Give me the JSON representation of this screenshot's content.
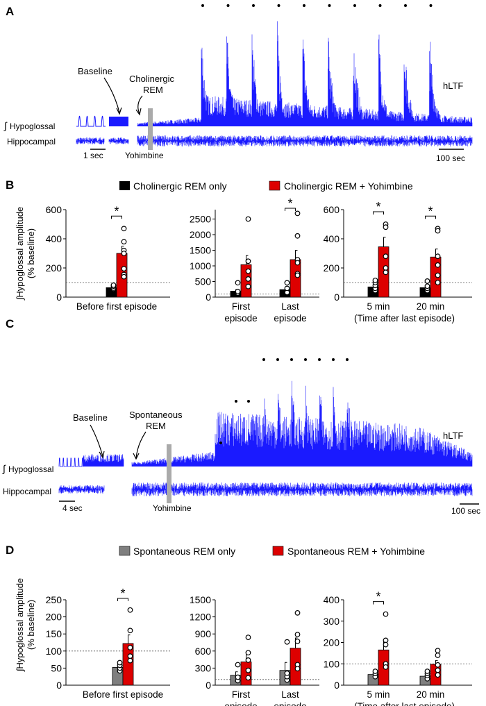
{
  "colors": {
    "trace": "#1a1aff",
    "black_bar": "#000000",
    "grey_bar": "#7f7f7f",
    "red_bar": "#dd0000",
    "drug_marker": "#aaaaaa"
  },
  "panelA": {
    "label": "A",
    "baseline": "Baseline",
    "rem_line1": "Cholinergic",
    "rem_line2": "REM",
    "hltf": "hLTF",
    "hypoglossal": "Hypoglossal",
    "integral": "∫",
    "hippocampal": "Hippocampal",
    "scale_short": "1 sec",
    "drug": "Yohimbine",
    "scale_long": "100 sec",
    "episodes": 10
  },
  "panelB": {
    "label": "B",
    "legend": [
      {
        "name": "Cholinergic REM only",
        "color": "#000000"
      },
      {
        "name": "Cholinergic REM + Yohimbine",
        "color": "#dd0000"
      }
    ],
    "ylabel_line1": "Hypoglossal amplitude",
    "ylabel_line2": "(% baseline)",
    "integral": "∫"
  },
  "panelC": {
    "label": "C",
    "baseline": "Baseline",
    "rem_line1": "Spontaneous",
    "rem_line2": "REM",
    "hltf": "hLTF",
    "hypoglossal": "Hypoglossal",
    "integral": "∫",
    "hippocampal": "Hippocampal",
    "scale_short": "4 sec",
    "drug": "Yohimbine",
    "scale_long": "100 sec",
    "episodes": 10
  },
  "panelD": {
    "label": "D",
    "legend": [
      {
        "name": "Spontaneous REM only",
        "color": "#7f7f7f"
      },
      {
        "name": "Spontaneous REM + Yohimbine",
        "color": "#dd0000"
      }
    ],
    "ylabel_line1": "Hypoglossal amplitude",
    "ylabel_line2": "(% baseline)",
    "integral": "∫"
  },
  "chart_data": [
    {
      "id": "B1",
      "type": "bar",
      "ylim": [
        0,
        600
      ],
      "yticks": [
        "0",
        "200",
        "400",
        "600"
      ],
      "reference_line": 100,
      "xlabel": [
        "Before first episode"
      ],
      "groups": [
        {
          "label": [
            "Before first episode"
          ],
          "control": {
            "mean": 65,
            "sem": 8,
            "points": [
              55,
              62,
              75,
              82
            ]
          },
          "drug": {
            "mean": 300,
            "sem": 50,
            "points": [
              470,
              380,
              320,
              300,
              195,
              155,
              140
            ]
          },
          "significant": true
        }
      ]
    },
    {
      "id": "B2",
      "type": "bar",
      "ylim": [
        0,
        2800
      ],
      "yticks": [
        "0",
        "500",
        "1000",
        "1500",
        "2000",
        "2500"
      ],
      "reference_line": 100,
      "groups": [
        {
          "label": [
            "First",
            "episode"
          ],
          "control": {
            "mean": 190,
            "sem": 50,
            "points": [
              130,
              180,
              460
            ]
          },
          "drug": {
            "mean": 1040,
            "sem": 290,
            "points": [
              2500,
              1150,
              830,
              580,
              340
            ]
          },
          "significant": false
        },
        {
          "label": [
            "Last",
            "episode"
          ],
          "control": {
            "mean": 240,
            "sem": 60,
            "points": [
              150,
              280,
              460
            ]
          },
          "drug": {
            "mean": 1200,
            "sem": 300,
            "points": [
              2680,
              1960,
              1200,
              1100,
              750,
              700
            ]
          },
          "significant": true
        }
      ]
    },
    {
      "id": "B3",
      "type": "bar",
      "ylim": [
        0,
        600
      ],
      "yticks": [
        "0",
        "200",
        "400",
        "600"
      ],
      "reference_line": 100,
      "xlabel": [
        "(Time after last episode)"
      ],
      "groups": [
        {
          "label": [
            "5 min"
          ],
          "control": {
            "mean": 70,
            "sem": 10,
            "points": [
              45,
              60,
              80,
              100,
              115
            ]
          },
          "drug": {
            "mean": 345,
            "sem": 65,
            "points": [
              500,
              480,
              280,
              200,
              170
            ]
          },
          "significant": true
        },
        {
          "label": [
            "20 min"
          ],
          "control": {
            "mean": 65,
            "sem": 12,
            "points": [
              45,
              60,
              75,
              110
            ]
          },
          "drug": {
            "mean": 275,
            "sem": 55,
            "points": [
              470,
              455,
              280,
              220,
              150,
              100
            ]
          },
          "significant": true
        }
      ]
    },
    {
      "id": "D1",
      "type": "bar",
      "ylim": [
        0,
        250
      ],
      "yticks": [
        "0",
        "50",
        "100",
        "150",
        "200",
        "250"
      ],
      "reference_line": 100,
      "groups": [
        {
          "label": [
            "Before first episode"
          ],
          "control": {
            "mean": 52,
            "sem": 6,
            "points": [
              42,
              50,
              58,
              66
            ]
          },
          "drug": {
            "mean": 122,
            "sem": 25,
            "points": [
              220,
              160,
              110,
              85,
              72
            ]
          },
          "significant": true
        }
      ]
    },
    {
      "id": "D2",
      "type": "bar",
      "ylim": [
        0,
        1500
      ],
      "yticks": [
        "0",
        "300",
        "600",
        "900",
        "1200",
        "1500"
      ],
      "reference_line": 100,
      "groups": [
        {
          "label": [
            "First",
            "episode"
          ],
          "control": {
            "mean": 175,
            "sem": 60,
            "points": [
              80,
              140,
              360
            ]
          },
          "drug": {
            "mean": 410,
            "sem": 120,
            "points": [
              840,
              570,
              440,
              260,
              130
            ]
          },
          "significant": false
        },
        {
          "label": [
            "Last",
            "episode"
          ],
          "control": {
            "mean": 260,
            "sem": 140,
            "points": [
              90,
              150,
              210,
              760
            ]
          },
          "drug": {
            "mean": 650,
            "sem": 180,
            "points": [
              1270,
              890,
              770,
              360,
              290
            ]
          },
          "significant": false
        }
      ]
    },
    {
      "id": "D3",
      "type": "bar",
      "ylim": [
        0,
        400
      ],
      "yticks": [
        "0",
        "100",
        "200",
        "300",
        "400"
      ],
      "reference_line": 100,
      "xlabel": [
        "(Time after last episode)"
      ],
      "groups": [
        {
          "label": [
            "5 min"
          ],
          "control": {
            "mean": 50,
            "sem": 6,
            "points": [
              40,
              55,
              65
            ]
          },
          "drug": {
            "mean": 165,
            "sem": 45,
            "points": [
              333,
              210,
              190,
              100,
              85
            ]
          },
          "significant": true
        },
        {
          "label": [
            "20 min"
          ],
          "control": {
            "mean": 42,
            "sem": 8,
            "points": [
              30,
              45,
              55,
              65
            ]
          },
          "drug": {
            "mean": 98,
            "sem": 18,
            "points": [
              162,
              140,
              95,
              70,
              48
            ]
          },
          "significant": false
        }
      ]
    }
  ]
}
